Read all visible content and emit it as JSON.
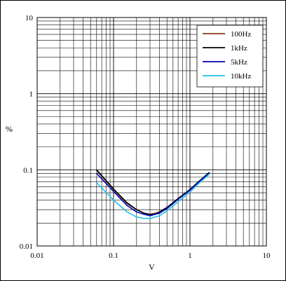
{
  "chart_data": {
    "type": "line",
    "title": "",
    "xlabel": "V",
    "ylabel": "%",
    "x_scale": "log",
    "y_scale": "log",
    "xlim": [
      0.01,
      10
    ],
    "ylim": [
      0.01,
      10
    ],
    "grid": true,
    "legend_position": "top-right",
    "x_tick_labels": [
      "0.01",
      "0.1",
      "1",
      "10"
    ],
    "y_tick_labels": [
      "10",
      "1",
      "0.1",
      "0.01"
    ],
    "series": [
      {
        "name": "100Hz",
        "color": "#8B3A1A",
        "x": [
          0.06,
          0.1,
          0.15,
          0.2,
          0.25,
          0.3,
          0.35,
          0.4,
          0.5,
          0.7,
          1.0,
          1.3,
          1.8
        ],
        "y": [
          0.098,
          0.055,
          0.036,
          0.03,
          0.027,
          0.026,
          0.027,
          0.028,
          0.032,
          0.042,
          0.055,
          0.07,
          0.092
        ]
      },
      {
        "name": "1kHz",
        "color": "#000000",
        "x": [
          0.06,
          0.1,
          0.15,
          0.2,
          0.25,
          0.3,
          0.35,
          0.4,
          0.5,
          0.7,
          1.0,
          1.3,
          1.8
        ],
        "y": [
          0.1,
          0.056,
          0.037,
          0.03,
          0.027,
          0.026,
          0.026,
          0.028,
          0.032,
          0.042,
          0.055,
          0.07,
          0.093
        ]
      },
      {
        "name": "5kHz",
        "color": "#0000B0",
        "x": [
          0.06,
          0.1,
          0.15,
          0.2,
          0.25,
          0.3,
          0.35,
          0.4,
          0.5,
          0.7,
          1.0,
          1.3,
          1.8
        ],
        "y": [
          0.09,
          0.052,
          0.034,
          0.028,
          0.026,
          0.025,
          0.026,
          0.027,
          0.031,
          0.041,
          0.054,
          0.069,
          0.091
        ]
      },
      {
        "name": "10kHz",
        "color": "#22C0E8",
        "x": [
          0.06,
          0.1,
          0.15,
          0.2,
          0.25,
          0.3,
          0.35,
          0.4,
          0.5,
          0.7,
          1.0,
          1.3,
          1.8
        ],
        "y": [
          0.068,
          0.04,
          0.028,
          0.024,
          0.023,
          0.023,
          0.024,
          0.025,
          0.029,
          0.038,
          0.051,
          0.066,
          0.088
        ]
      }
    ]
  }
}
